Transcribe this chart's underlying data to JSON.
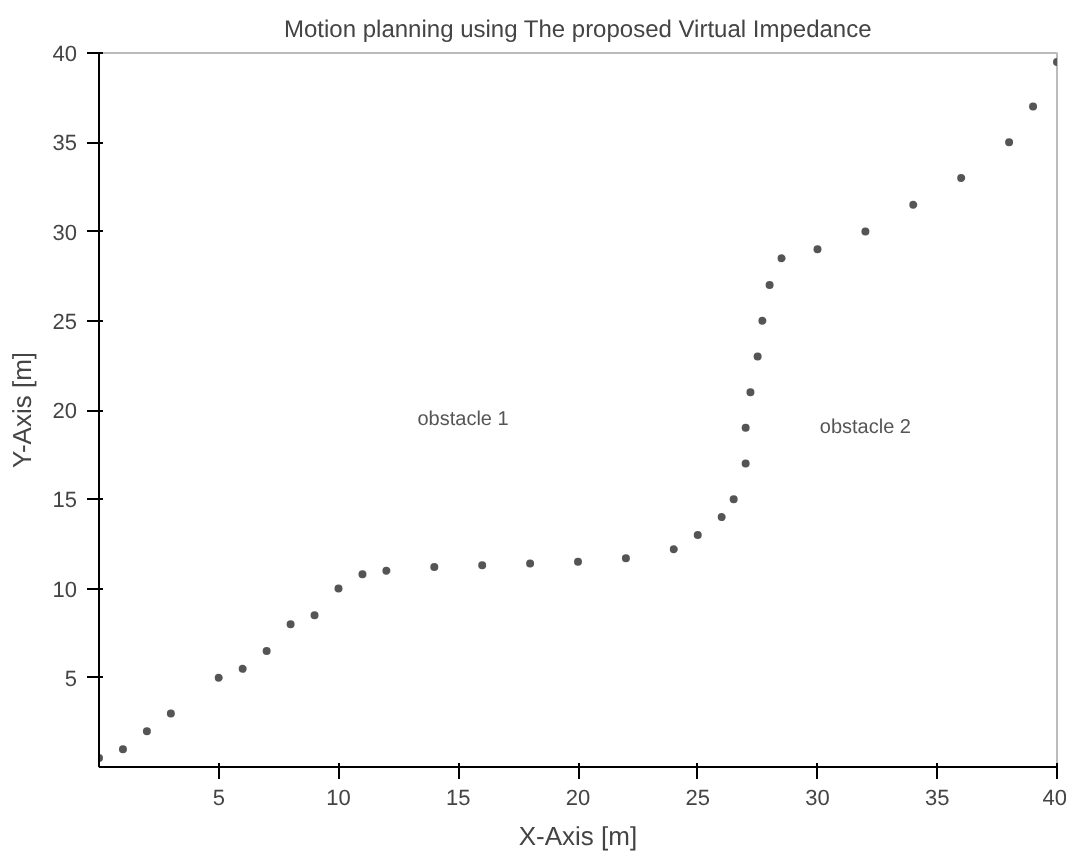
{
  "chart_data": {
    "type": "scatter",
    "title": "Motion planning using The proposed Virtual Impedance",
    "xlabel": "X-Axis [m]",
    "ylabel": "Y-Axis [m]",
    "annotations": [
      "obstacle 1",
      "obstacle 2"
    ],
    "x": [
      0,
      1,
      2,
      3,
      5,
      6,
      7,
      8,
      9,
      10,
      11,
      12,
      14,
      16,
      18,
      20,
      22,
      24,
      25,
      26,
      26.5,
      27,
      27,
      27.2,
      27.5,
      27.7,
      28,
      28.5,
      30,
      32,
      34,
      36,
      38,
      39,
      40
    ],
    "series": [
      {
        "color": "#555555",
        "values": [
          0.5,
          1,
          2,
          3,
          5,
          5.5,
          6.5,
          8,
          8.5,
          10,
          10.8,
          11,
          11.2,
          11.3,
          11.4,
          11.5,
          11.7,
          12.2,
          13,
          14,
          15,
          17,
          19,
          21,
          23,
          25,
          27,
          28.5,
          29,
          30,
          31.5,
          33,
          35,
          37,
          39.5
        ]
      }
    ],
    "xlim": [
      0,
      40
    ],
    "ylim": [
      0,
      40
    ],
    "xticks": [
      5,
      10,
      15,
      20,
      25,
      30,
      35,
      40
    ],
    "yticks": [
      5,
      10,
      15,
      20,
      25,
      30,
      35,
      40
    ],
    "marker": "circle",
    "grid": false
  }
}
